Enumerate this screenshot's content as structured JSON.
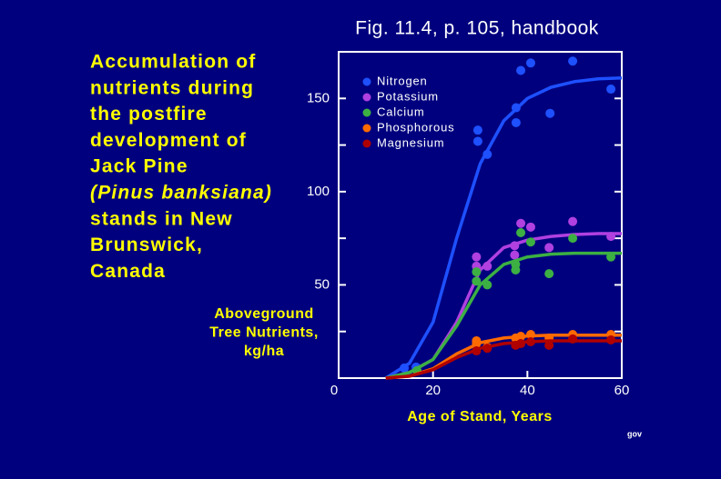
{
  "chart_data": {
    "type": "scatter",
    "title": "Fig. 11.4, p. 105, handbook",
    "description": [
      "Accumulation of",
      "nutrients during",
      "the postfire",
      "development of",
      "Jack Pine",
      "(Pinus banksiana)",
      "stands in New",
      "Brunswick,",
      "Canada"
    ],
    "description_italic": [
      5
    ],
    "y_label": [
      "Aboveground",
      "Tree Nutrients,",
      "kg/ha"
    ],
    "x_label": "Age of Stand, Years",
    "source": "gov",
    "xlim": [
      0,
      60
    ],
    "xticks": [
      0,
      20,
      40,
      60
    ],
    "ylim": [
      0,
      175
    ],
    "yticks": [
      50,
      100,
      150
    ],
    "yminor": [
      25,
      75,
      125
    ],
    "legend": "upper left",
    "fit_x": [
      10,
      15,
      20,
      25,
      30,
      35,
      40,
      45,
      50,
      55,
      60
    ],
    "series": [
      {
        "name": "Nitrogen",
        "color": "#1e50ff",
        "x": [
          13.9,
          16.4,
          29.5,
          29.5,
          31.5,
          37.6,
          37.6,
          38.6,
          40.7,
          44.8,
          49.6,
          57.7
        ],
        "values": [
          5.4,
          5.9,
          133,
          127,
          120,
          145,
          137,
          165,
          169,
          142,
          170,
          155
        ],
        "fit": [
          0,
          8,
          30,
          75,
          115,
          138,
          150,
          156,
          159,
          160.5,
          161
        ]
      },
      {
        "name": "Potassium",
        "color": "#b040e0",
        "x": [
          29.2,
          29.2,
          31.5,
          37.3,
          37.3,
          38.6,
          40.7,
          44.6,
          49.6,
          57.7
        ],
        "values": [
          65,
          60,
          60,
          71,
          66,
          83,
          81,
          70,
          84,
          76
        ],
        "fit": [
          0,
          3,
          10,
          30,
          58,
          70,
          74,
          76,
          77,
          77.5,
          77.5
        ]
      },
      {
        "name": "Calcium",
        "color": "#3cb043",
        "x": [
          16.6,
          29.2,
          29.2,
          31.5,
          37.5,
          37.5,
          38.6,
          40.7,
          44.6,
          49.6,
          57.7
        ],
        "values": [
          4,
          57,
          52,
          50,
          58,
          61,
          78,
          73,
          56,
          75,
          65
        ],
        "fit": [
          0,
          3,
          10,
          28,
          50,
          61,
          65,
          66.5,
          67,
          67,
          67
        ]
      },
      {
        "name": "Phosphorous",
        "color": "#ff6a00",
        "x": [
          29.2,
          29.2,
          31.5,
          37.5,
          38.6,
          40.7,
          44.6,
          49.6,
          57.7
        ],
        "values": [
          20,
          18.5,
          16.6,
          21.5,
          22.4,
          23.4,
          21.5,
          23.4,
          23.4
        ],
        "fit": [
          0,
          1,
          5,
          13,
          19,
          21.5,
          22.5,
          23,
          23,
          23,
          23
        ]
      },
      {
        "name": "Magnesium",
        "color": "#b00000",
        "x": [
          29.2,
          31.5,
          37.5,
          38.6,
          40.7,
          44.6,
          49.6,
          57.7
        ],
        "values": [
          14.6,
          16,
          17.6,
          18.5,
          19.5,
          17.6,
          21,
          20.5
        ],
        "fit": [
          0,
          1,
          4.5,
          11,
          16,
          18.5,
          19.5,
          20,
          20,
          20,
          20
        ]
      }
    ]
  }
}
